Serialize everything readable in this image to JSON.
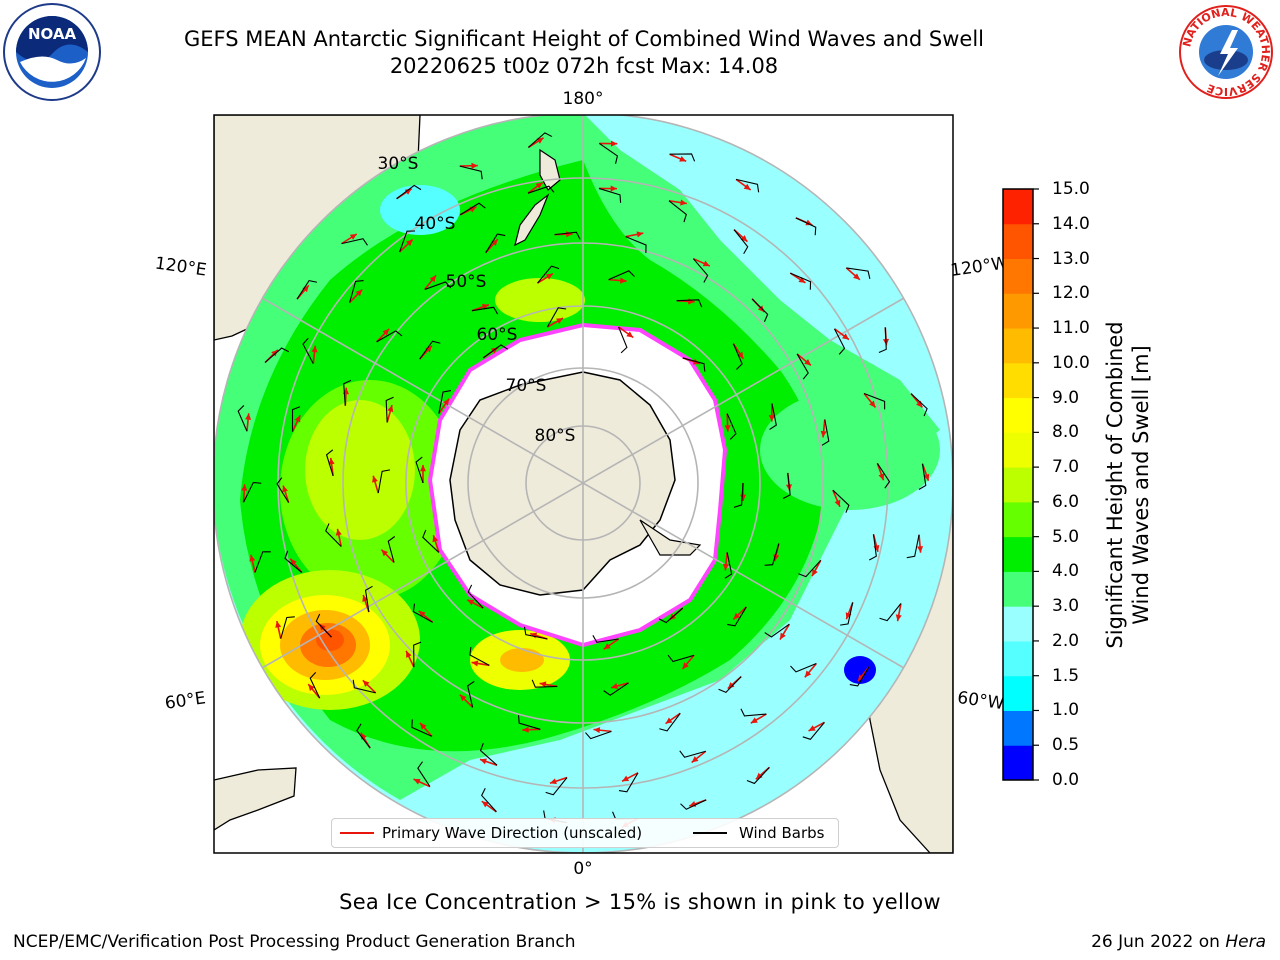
{
  "title": {
    "line1": "GEFS MEAN Antarctic Significant Height of Combined Wind Waves and Swell",
    "line2": "20220625 t00z 072h fcst   Max: 14.08"
  },
  "logos": {
    "left": {
      "name": "noaa-logo",
      "text": "NOAA"
    },
    "right": {
      "name": "nws-logo",
      "text": "NATIONAL WEATHER SERVICE"
    }
  },
  "map": {
    "projection": "south polar stereographic",
    "longitude_labels": {
      "top": "180°",
      "bottom": "0°",
      "upper_left": "120°E",
      "lower_left": "60°E",
      "upper_right": "120°W",
      "lower_right": "60°W"
    },
    "latitude_labels": [
      "30°S",
      "40°S",
      "50°S",
      "60°S",
      "70°S",
      "80°S"
    ],
    "colors": {
      "land": "#efebdb",
      "ocean_outside": "#ffffff",
      "graticule": "#b5b5b5",
      "coast": "#000000",
      "ice_edge": "#ff44ff",
      "wave_arrow": "#e8150c",
      "wind_barb": "#000000"
    }
  },
  "colorbar": {
    "label_line1": "Significant Height of Combined",
    "label_line2": "Wind Waves and Swell [m]",
    "ticks": [
      "0.0",
      "0.5",
      "1.0",
      "1.5",
      "2.0",
      "3.0",
      "4.0",
      "5.0",
      "6.0",
      "7.0",
      "8.0",
      "9.0",
      "10.0",
      "11.0",
      "12.0",
      "13.0",
      "14.0",
      "15.0"
    ],
    "colors": [
      "#0000ff",
      "#0077ff",
      "#00ffff",
      "#55ffff",
      "#99ffff",
      "#44ff77",
      "#00ee00",
      "#66ff00",
      "#bbff00",
      "#eeff00",
      "#ffff00",
      "#ffdd00",
      "#ffbb00",
      "#ff9900",
      "#ff7700",
      "#ff5500",
      "#ff2200"
    ]
  },
  "legend": {
    "wave_direction": "Primary Wave Direction (unscaled)",
    "wind_barbs": "Wind Barbs"
  },
  "footnote": "Sea Ice Concentration > 15% is shown in pink to yellow",
  "credit": "NCEP/EMC/Verification Post Processing Product Generation Branch",
  "run_date": {
    "date": "26 Jun 2022 on ",
    "machine": "Hera"
  }
}
